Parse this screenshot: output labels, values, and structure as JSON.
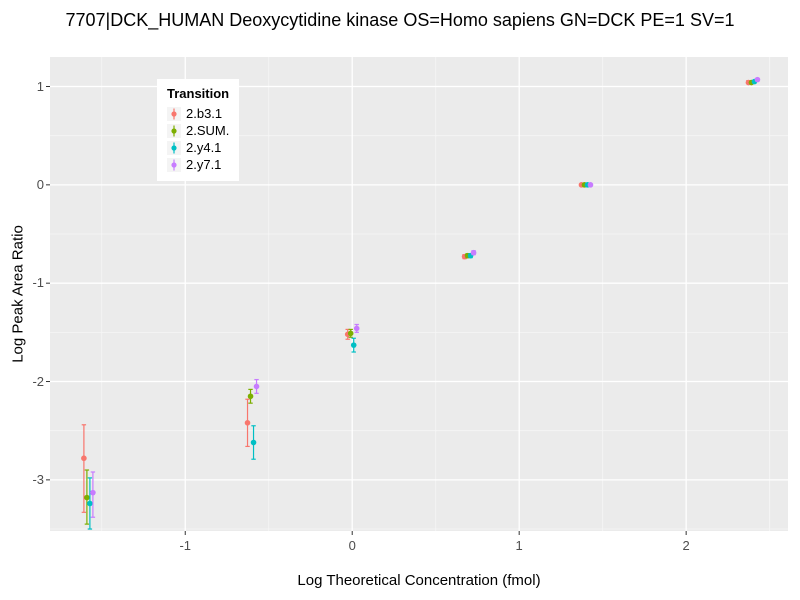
{
  "chart_data": {
    "type": "scatter",
    "title": "7707|DCK_HUMAN Deoxycytidine kinase OS=Homo sapiens GN=DCK PE=1 SV=1",
    "xlabel": "Log Theoretical Concentration (fmol)",
    "ylabel": "Log Peak Area Ratio",
    "xlim": [
      -1.81,
      2.61
    ],
    "ylim": [
      -3.52,
      1.3
    ],
    "x_ticks": [
      -1,
      0,
      1,
      2
    ],
    "y_ticks": [
      -3,
      -2,
      -1,
      0,
      1
    ],
    "minor_step": 0.5,
    "grid": true,
    "panel_bg": "#EBEBEB",
    "grid_major_color": "#FFFFFF",
    "grid_minor_color": "#F6F6F6",
    "tick_color": "#333333",
    "axis_text_color": "#4D4D4D",
    "legend_title": "Transition",
    "legend_position": "top-left-inside",
    "dodge": [
      -0.027,
      -0.009,
      0.009,
      0.027
    ],
    "series": [
      {
        "name": "2.b3.1",
        "color": "#F8766D",
        "points": [
          {
            "x": -1.58,
            "y": -2.78,
            "ymin": -3.33,
            "ymax": -2.44
          },
          {
            "x": -0.6,
            "y": -2.42,
            "ymin": -2.66,
            "ymax": -2.18
          },
          {
            "x": 0.0,
            "y": -1.52,
            "ymin": -1.57,
            "ymax": -1.47
          },
          {
            "x": 0.7,
            "y": -0.73,
            "ymin": -0.75,
            "ymax": -0.71
          },
          {
            "x": 1.4,
            "y": 0.0,
            "ymin": -0.01,
            "ymax": 0.01
          },
          {
            "x": 2.4,
            "y": 1.04,
            "ymin": 1.03,
            "ymax": 1.06
          }
        ]
      },
      {
        "name": "2.SUM.",
        "color": "#7CAE00",
        "points": [
          {
            "x": -1.58,
            "y": -3.18,
            "ymin": -3.45,
            "ymax": -2.9
          },
          {
            "x": -0.6,
            "y": -2.15,
            "ymin": -2.22,
            "ymax": -2.08
          },
          {
            "x": 0.0,
            "y": -1.51,
            "ymin": -1.55,
            "ymax": -1.47
          },
          {
            "x": 0.7,
            "y": -0.72,
            "ymin": -0.74,
            "ymax": -0.7
          },
          {
            "x": 1.4,
            "y": 0.0,
            "ymin": -0.01,
            "ymax": 0.01
          },
          {
            "x": 2.4,
            "y": 1.04,
            "ymin": 1.03,
            "ymax": 1.05
          }
        ]
      },
      {
        "name": "2.y4.1",
        "color": "#00BFC4",
        "points": [
          {
            "x": -1.58,
            "y": -3.24,
            "ymin": -3.5,
            "ymax": -2.98
          },
          {
            "x": -0.6,
            "y": -2.62,
            "ymin": -2.79,
            "ymax": -2.45
          },
          {
            "x": 0.0,
            "y": -1.63,
            "ymin": -1.7,
            "ymax": -1.56
          },
          {
            "x": 0.7,
            "y": -0.72,
            "ymin": -0.74,
            "ymax": -0.7
          },
          {
            "x": 1.4,
            "y": 0.0,
            "ymin": -0.01,
            "ymax": 0.01
          },
          {
            "x": 2.4,
            "y": 1.05,
            "ymin": 1.04,
            "ymax": 1.06
          }
        ]
      },
      {
        "name": "2.y7.1",
        "color": "#C77CFF",
        "points": [
          {
            "x": -1.58,
            "y": -3.13,
            "ymin": -3.38,
            "ymax": -2.92
          },
          {
            "x": -0.6,
            "y": -2.05,
            "ymin": -2.12,
            "ymax": -1.98
          },
          {
            "x": 0.0,
            "y": -1.46,
            "ymin": -1.5,
            "ymax": -1.42
          },
          {
            "x": 0.7,
            "y": -0.69,
            "ymin": -0.71,
            "ymax": -0.67
          },
          {
            "x": 1.4,
            "y": 0.0,
            "ymin": -0.01,
            "ymax": 0.01
          },
          {
            "x": 2.4,
            "y": 1.07,
            "ymin": 1.06,
            "ymax": 1.08
          }
        ]
      }
    ]
  }
}
